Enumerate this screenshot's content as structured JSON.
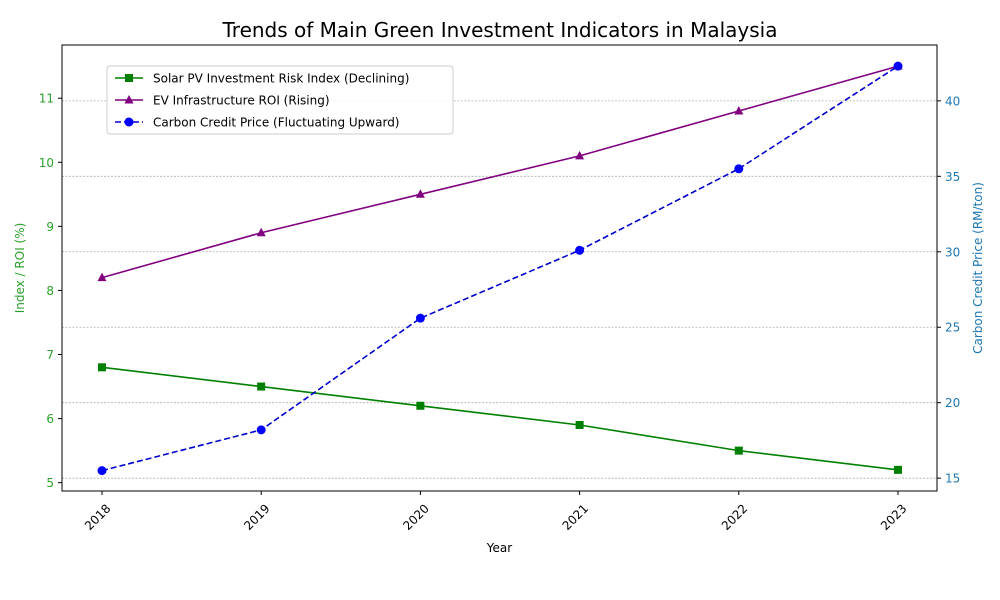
{
  "chart_data": {
    "type": "line",
    "title": "Trends of Main Green Investment Indicators in Malaysia",
    "xlabel": "Year",
    "ylabel_left": "Index / ROI (%)",
    "ylabel_right": "Carbon Credit Price (RM/ton)",
    "categories": [
      "2018",
      "2019",
      "2020",
      "2021",
      "2022",
      "2023"
    ],
    "left_axis": {
      "range": [
        4.87,
        11.83
      ],
      "ticks": [
        5,
        6,
        7,
        8,
        9,
        10,
        11
      ],
      "color": "#2ca02c"
    },
    "right_axis": {
      "range": [
        14.15,
        43.7
      ],
      "ticks": [
        15,
        20,
        25,
        30,
        35,
        40
      ],
      "color": "#1f77b4"
    },
    "grid": "horizontal dashed, right axis",
    "legend_position": "upper-left",
    "series": [
      {
        "name": "Solar PV Investment Risk Index (Declining)",
        "axis": "left",
        "color": "#008000",
        "marker": "square",
        "dash": "solid",
        "values": [
          6.8,
          6.5,
          6.2,
          5.9,
          5.5,
          5.2
        ]
      },
      {
        "name": "EV Infrastructure ROI (Rising)",
        "axis": "left",
        "color": "#800080",
        "marker": "triangle",
        "dash": "solid",
        "values": [
          8.2,
          8.9,
          9.5,
          10.1,
          10.8,
          11.5
        ]
      },
      {
        "name": "Carbon Credit Price (Fluctuating Upward)",
        "axis": "right",
        "color": "#0000cd",
        "marker": "circle",
        "dash": "dashed",
        "marker_color": "#0000ff",
        "values": [
          15.5,
          18.2,
          25.6,
          30.1,
          35.5,
          42.3
        ]
      }
    ]
  }
}
